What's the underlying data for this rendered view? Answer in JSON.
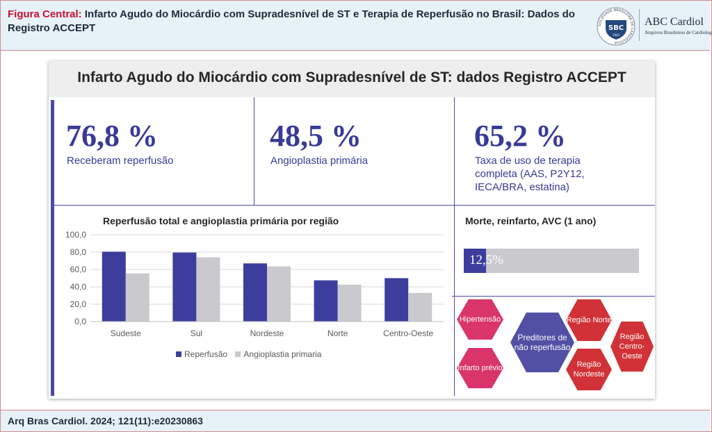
{
  "header": {
    "label": "Figura Central:",
    "title": "Infarto Agudo do Miocárdio com Supradesnível de ST e Terapia de Reperfusão no Brasil: Dados do Registro ACCEPT",
    "logo_text": "SBC",
    "logo_ring_text": "SOCIEDADE BRASILEIRA DE CARDIOLOGIA",
    "logo_year": "1943",
    "journal_name": "ABC Cardiol",
    "journal_subtitle": "Arquivos Brasileiros de Cardiologia"
  },
  "figure": {
    "title": "Infarto Agudo do Miocárdio com Supradesnível de ST: dados Registro ACCEPT",
    "stats": [
      {
        "value": "76,8 %",
        "label": "Receberam reperfusão"
      },
      {
        "value": "48,5 %",
        "label": "Angioplastia primária"
      },
      {
        "value": "65,2 %",
        "label": "Taxa de uso de terapia completa (AAS, P2Y12, IECA/BRA, estatina)"
      }
    ],
    "outcome": {
      "title": "Morte, reinfarto, AVC (1 ano)",
      "value_label": "12,5%",
      "fraction": 0.125
    },
    "predictors": {
      "center": "Preditores de não reperfusão",
      "items": [
        "Hipertensão",
        "Infarto prévio",
        "Região Norte",
        "Região Nordeste",
        "Região Centro-Oeste"
      ]
    }
  },
  "chart_data": {
    "type": "bar",
    "title": "Reperfusão total e angioplastia primária por região",
    "categories": [
      "Sudeste",
      "Sul",
      "Nordeste",
      "Norte",
      "Centro-Oeste"
    ],
    "series": [
      {
        "name": "Reperfusão",
        "values": [
          80.5,
          79.5,
          67.0,
          47.5,
          50.0
        ]
      },
      {
        "name": "Angioplastia primaria",
        "values": [
          55.5,
          74.0,
          63.5,
          42.5,
          33.0
        ]
      }
    ],
    "yticks": [
      "0,0",
      "20,0",
      "40,0",
      "60,0",
      "80,0",
      "100,0"
    ],
    "ylim": [
      0,
      100
    ],
    "xlabel": "",
    "ylabel": "",
    "colors": [
      "#3d3d9e",
      "#c9c9ce"
    ],
    "grid": true,
    "legend": "bottom"
  },
  "footer": {
    "citation": "Arq Bras Cardiol. 2024; 121(11):e20230863"
  }
}
